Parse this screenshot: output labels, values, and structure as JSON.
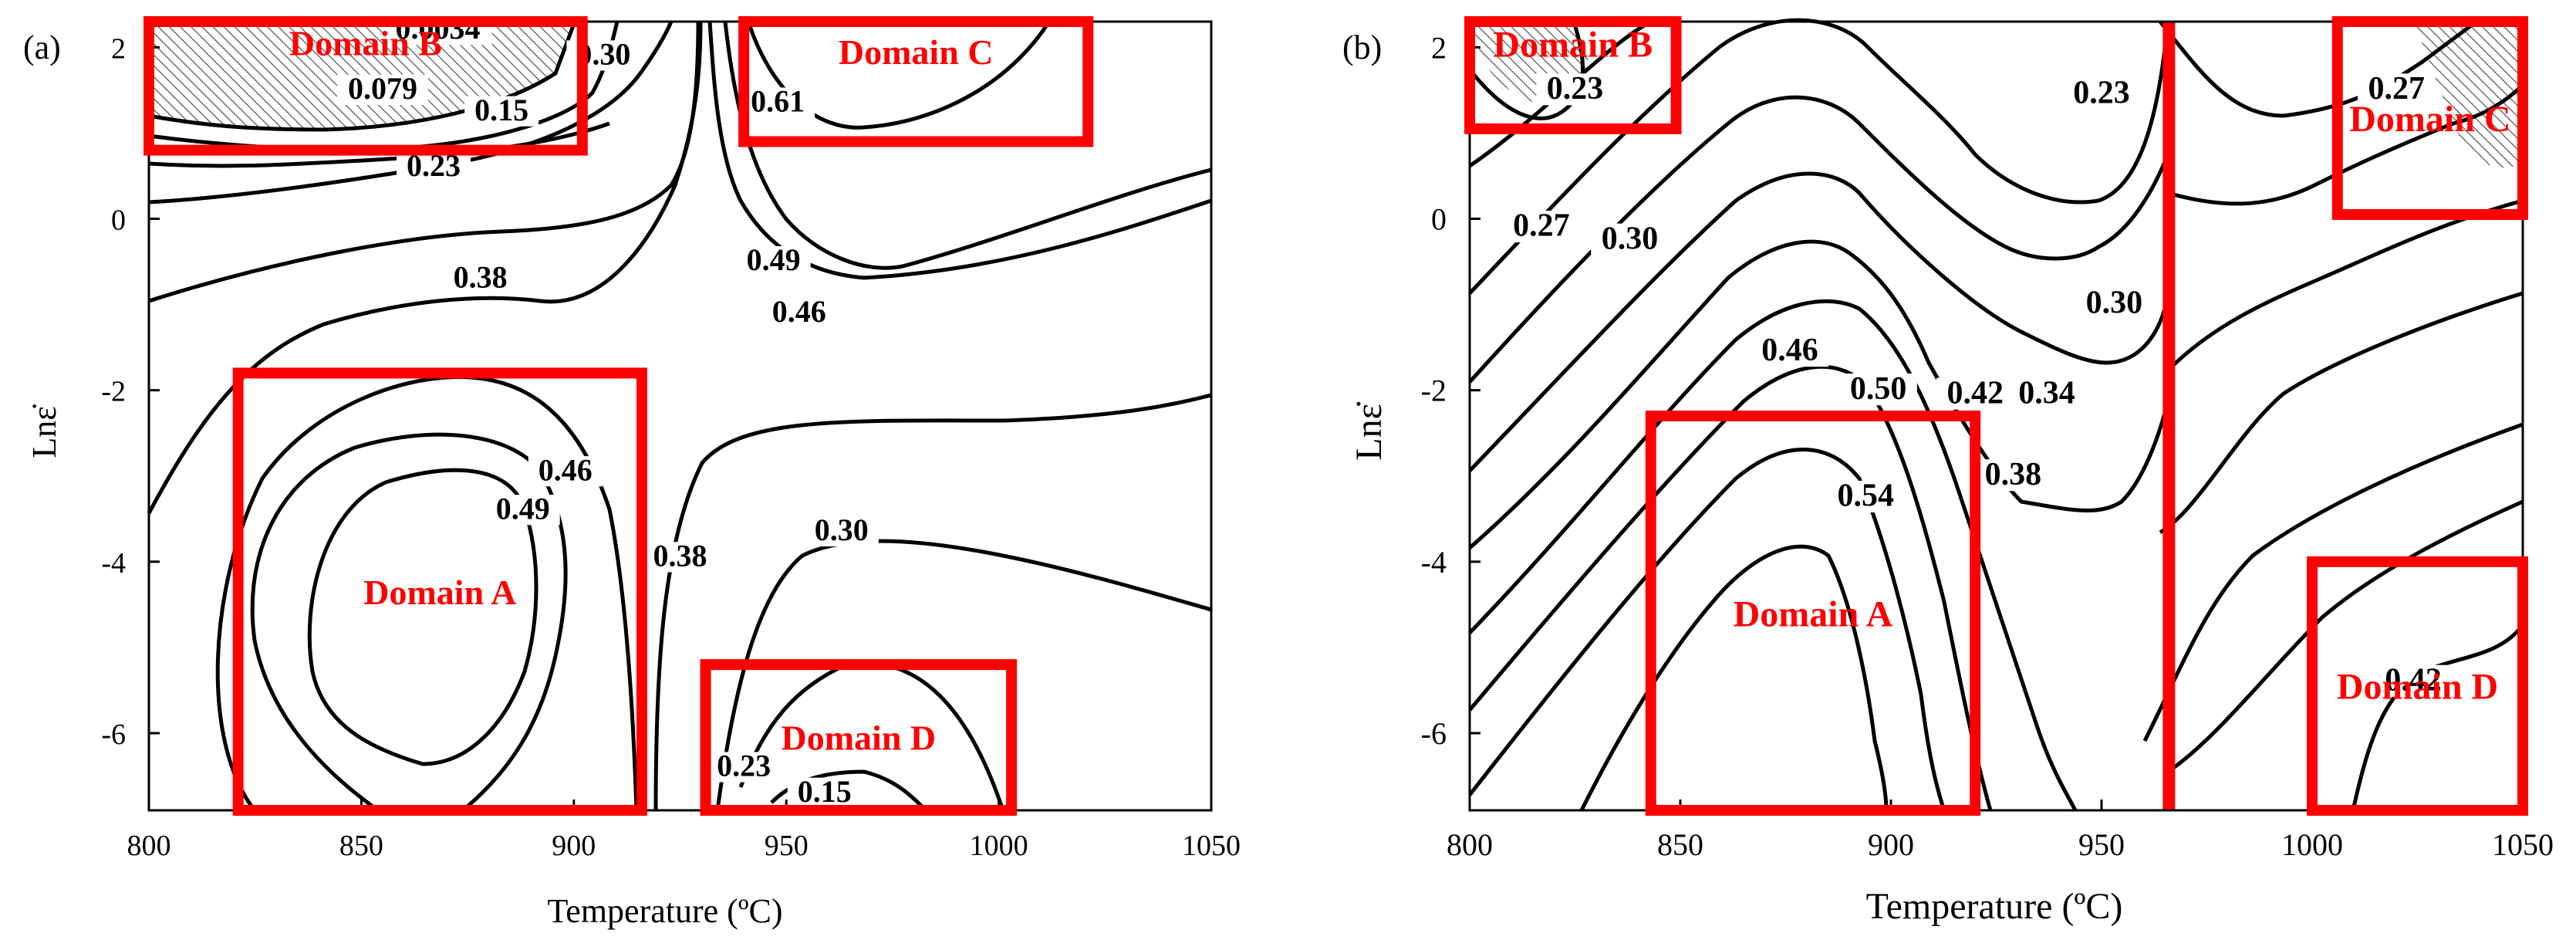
{
  "figure": {
    "colors": {
      "contour": "#000000",
      "domain_box": "#ff0000",
      "domain_label": "#ff0000",
      "hatch": "#555555"
    }
  },
  "chart_data": [
    {
      "type": "contour",
      "panel_label": "(a)",
      "xlabel": "Temperature   (ºC)",
      "ylabel": "Lnε̇",
      "xlim": [
        800,
        1050
      ],
      "ylim": [
        -6.9,
        2.3
      ],
      "xticks": [
        800,
        850,
        900,
        950,
        1000,
        1050
      ],
      "yticks": [
        2,
        0,
        -2,
        -4,
        -6
      ],
      "ytick_labels": [
        "2",
        "0",
        "-2",
        "-4",
        "-6"
      ],
      "contour_levels": [
        "0.0034",
        "0.079",
        "0.15",
        "0.23",
        "0.30",
        "0.38",
        "0.46",
        "0.49",
        "0.61"
      ],
      "contour_labels": [
        {
          "text": "0.0034",
          "x": 868,
          "y": 2.1
        },
        {
          "text": "0.079",
          "x": 855,
          "y": 1.4
        },
        {
          "text": "0.15",
          "x": 883,
          "y": 1.15
        },
        {
          "text": "0.30",
          "x": 907,
          "y": 1.8
        },
        {
          "text": "0.61",
          "x": 948,
          "y": 1.25
        },
        {
          "text": "0.23",
          "x": 867,
          "y": 0.5
        },
        {
          "text": "0.49",
          "x": 947,
          "y": -0.6
        },
        {
          "text": "0.46",
          "x": 953,
          "y": -1.2
        },
        {
          "text": "0.38",
          "x": 878,
          "y": -0.8
        },
        {
          "text": "0.46",
          "x": 898,
          "y": -3.05
        },
        {
          "text": "0.49",
          "x": 888,
          "y": -3.5
        },
        {
          "text": "0.38",
          "x": 925,
          "y": -4.05
        },
        {
          "text": "0.30",
          "x": 963,
          "y": -3.75
        },
        {
          "text": "0.23",
          "x": 940,
          "y": -6.5
        },
        {
          "text": "0.15",
          "x": 959,
          "y": -6.8
        }
      ],
      "domains": [
        {
          "name": "Domain B",
          "x": [
            800,
            902
          ],
          "y": [
            0.8,
            2.3
          ]
        },
        {
          "name": "Domain C",
          "x": [
            940,
            1021
          ],
          "y": [
            0.9,
            2.3
          ]
        },
        {
          "name": "Domain A",
          "x": [
            821,
            916
          ],
          "y": [
            -6.9,
            -1.8
          ]
        },
        {
          "name": "Domain D",
          "x": [
            931,
            1003
          ],
          "y": [
            -6.9,
            -5.2
          ]
        }
      ]
    },
    {
      "type": "contour",
      "panel_label": "(b)",
      "xlabel": "Temperature  (ºC)",
      "ylabel": "Lnε̇",
      "xlim": [
        800,
        1050
      ],
      "ylim": [
        -6.9,
        2.3
      ],
      "xticks": [
        800,
        850,
        900,
        950,
        1000,
        1050
      ],
      "yticks": [
        2,
        0,
        -2,
        -4,
        -6
      ],
      "ytick_labels": [
        "2",
        "0",
        "-2",
        "-4",
        "-6"
      ],
      "contour_levels": [
        "0.23",
        "0.27",
        "0.30",
        "0.34",
        "0.38",
        "0.42",
        "0.46",
        "0.50",
        "0.54"
      ],
      "contour_labels": [
        {
          "text": "0.23",
          "x": 825,
          "y": 1.4
        },
        {
          "text": "0.23",
          "x": 950,
          "y": 1.35
        },
        {
          "text": "0.27",
          "x": 1020,
          "y": 1.4
        },
        {
          "text": "0.27",
          "x": 817,
          "y": -0.2
        },
        {
          "text": "0.30",
          "x": 838,
          "y": -0.35
        },
        {
          "text": "0.30",
          "x": 953,
          "y": -1.1
        },
        {
          "text": "0.46",
          "x": 876,
          "y": -1.65
        },
        {
          "text": "0.50",
          "x": 897,
          "y": -2.1
        },
        {
          "text": "0.42",
          "x": 920,
          "y": -2.15
        },
        {
          "text": "0.34",
          "x": 937,
          "y": -2.15
        },
        {
          "text": "0.38",
          "x": 929,
          "y": -3.1
        },
        {
          "text": "0.54",
          "x": 894,
          "y": -3.35
        },
        {
          "text": "0.42",
          "x": 1024,
          "y": -5.5
        }
      ],
      "domains": [
        {
          "name": "Domain B",
          "x": [
            800,
            849
          ],
          "y": [
            1.05,
            2.3
          ]
        },
        {
          "name": "Domain C",
          "x": [
            1006,
            1050
          ],
          "y": [
            0.05,
            2.3
          ]
        },
        {
          "name": "Domain A",
          "x": [
            843,
            920
          ],
          "y": [
            -6.9,
            -2.3
          ]
        },
        {
          "name": "Domain D",
          "x": [
            1000,
            1050
          ],
          "y": [
            -6.9,
            -4.0
          ]
        }
      ],
      "vertical_marker_x": 966
    }
  ]
}
